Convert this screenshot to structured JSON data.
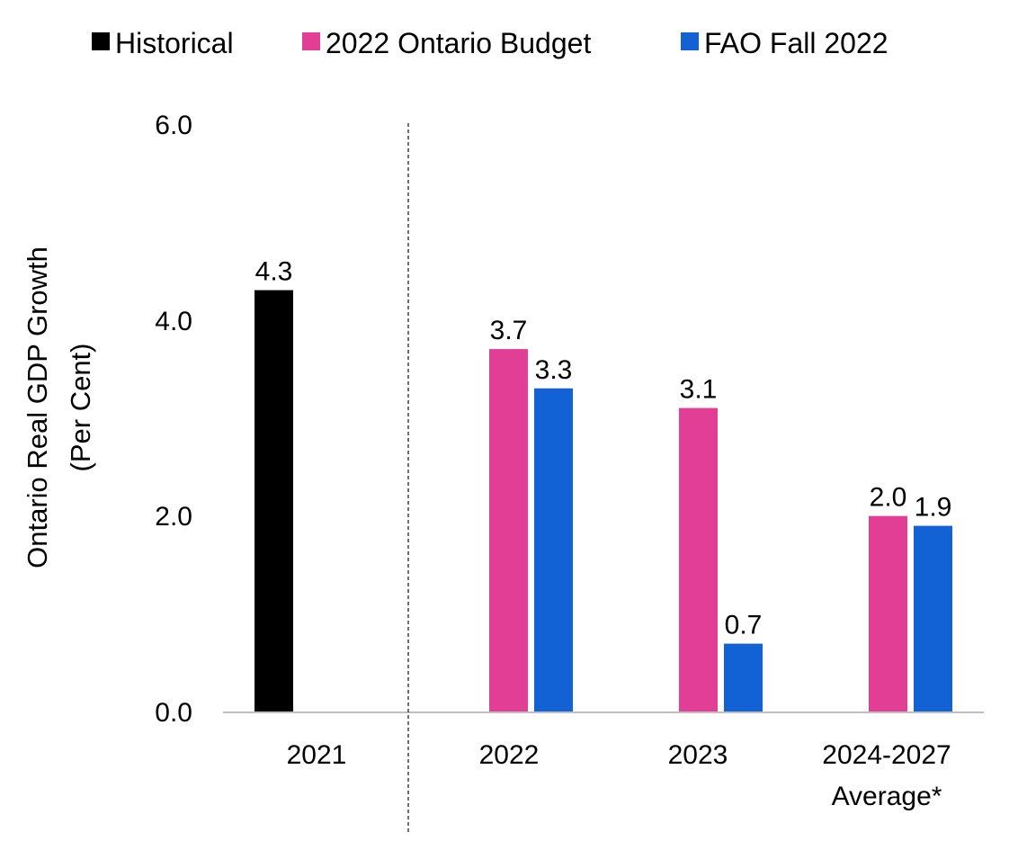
{
  "chart_data": {
    "type": "bar",
    "categories": [
      "2021",
      "2022",
      "2023",
      "2024-2027"
    ],
    "category_sublabels": [
      "",
      "",
      "",
      "Average*"
    ],
    "series": [
      {
        "name": "Historical",
        "color": "#000000",
        "values": [
          4.3,
          null,
          null,
          null
        ]
      },
      {
        "name": "2022 Ontario Budget",
        "color": "#E33E96",
        "values": [
          null,
          3.7,
          3.1,
          2.0
        ]
      },
      {
        "name": "FAO Fall 2022",
        "color": "#1262D6",
        "values": [
          null,
          3.3,
          0.7,
          1.9
        ]
      }
    ],
    "data_labels": [
      [
        "4.3",
        "",
        "",
        ""
      ],
      [
        "",
        "3.7",
        "3.1",
        "2.0"
      ],
      [
        "",
        "3.3",
        "0.7",
        "1.9"
      ]
    ],
    "ylabel_lines": [
      "Ontario Real GDP Growth",
      "(Per Cent)"
    ],
    "y_ticks": [
      "0.0",
      "2.0",
      "4.0",
      "6.0"
    ],
    "ylim": [
      0,
      6
    ],
    "grid": false,
    "legend_position": "top",
    "divider_after_category": "2021",
    "axis_color": "#BFBFBF",
    "divider_color": "#404040"
  }
}
